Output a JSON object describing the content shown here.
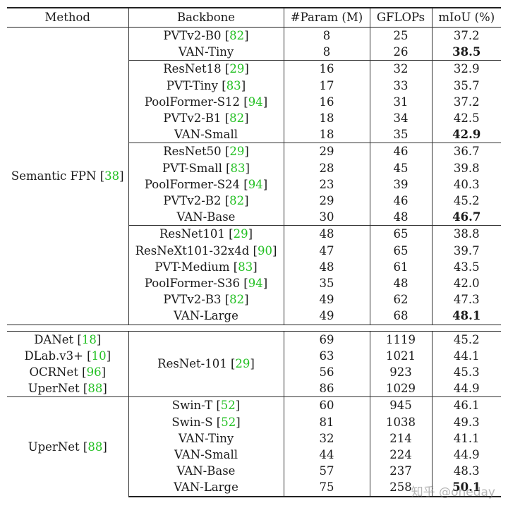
{
  "header": [
    "Method",
    "Backbone",
    "#Param (M)",
    "GFLOPs",
    "mIoU (%)"
  ],
  "semantic_fpn": {
    "method": "Semantic FPN",
    "method_ref": "38",
    "groups": [
      [
        {
          "backbone": "PVTv2-B0",
          "ref": "82",
          "param": "8",
          "gflops": "25",
          "miou": "37.2",
          "best": false
        },
        {
          "backbone": "VAN-Tiny",
          "ref": "",
          "param": "8",
          "gflops": "26",
          "miou": "38.5",
          "best": true
        }
      ],
      [
        {
          "backbone": "ResNet18",
          "ref": "29",
          "param": "16",
          "gflops": "32",
          "miou": "32.9",
          "best": false
        },
        {
          "backbone": "PVT-Tiny",
          "ref": "83",
          "param": "17",
          "gflops": "33",
          "miou": "35.7",
          "best": false
        },
        {
          "backbone": "PoolFormer-S12",
          "ref": "94",
          "param": "16",
          "gflops": "31",
          "miou": "37.2",
          "best": false
        },
        {
          "backbone": "PVTv2-B1",
          "ref": "82",
          "param": "18",
          "gflops": "34",
          "miou": "42.5",
          "best": false
        },
        {
          "backbone": "VAN-Small",
          "ref": "",
          "param": "18",
          "gflops": "35",
          "miou": "42.9",
          "best": true
        }
      ],
      [
        {
          "backbone": "ResNet50",
          "ref": "29",
          "param": "29",
          "gflops": "46",
          "miou": "36.7",
          "best": false
        },
        {
          "backbone": "PVT-Small",
          "ref": "83",
          "param": "28",
          "gflops": "45",
          "miou": "39.8",
          "best": false
        },
        {
          "backbone": "PoolFormer-S24",
          "ref": "94",
          "param": "23",
          "gflops": "39",
          "miou": "40.3",
          "best": false
        },
        {
          "backbone": "PVTv2-B2",
          "ref": "82",
          "param": "29",
          "gflops": "46",
          "miou": "45.2",
          "best": false
        },
        {
          "backbone": "VAN-Base",
          "ref": "",
          "param": "30",
          "gflops": "48",
          "miou": "46.7",
          "best": true
        }
      ],
      [
        {
          "backbone": "ResNet101",
          "ref": "29",
          "param": "48",
          "gflops": "65",
          "miou": "38.8",
          "best": false
        },
        {
          "backbone": "ResNeXt101-32x4d",
          "ref": "90",
          "param": "47",
          "gflops": "65",
          "miou": "39.7",
          "best": false
        },
        {
          "backbone": "PVT-Medium",
          "ref": "83",
          "param": "48",
          "gflops": "61",
          "miou": "43.5",
          "best": false
        },
        {
          "backbone": "PoolFormer-S36",
          "ref": "94",
          "param": "35",
          "gflops": "48",
          "miou": "42.0",
          "best": false
        },
        {
          "backbone": "PVTv2-B3",
          "ref": "82",
          "param": "49",
          "gflops": "62",
          "miou": "47.3",
          "best": false
        },
        {
          "backbone": "VAN-Large",
          "ref": "",
          "param": "49",
          "gflops": "68",
          "miou": "48.1",
          "best": true
        }
      ]
    ]
  },
  "resnet_section": {
    "backbone": "ResNet-101",
    "backbone_ref": "29",
    "rows": [
      {
        "method": "DANet",
        "ref": "18",
        "param": "69",
        "gflops": "1119",
        "miou": "45.2"
      },
      {
        "method": "DLab.v3+",
        "ref": "10",
        "param": "63",
        "gflops": "1021",
        "miou": "44.1"
      },
      {
        "method": "OCRNet",
        "ref": "96",
        "param": "56",
        "gflops": "923",
        "miou": "45.3"
      },
      {
        "method": "UperNet",
        "ref": "88",
        "param": "86",
        "gflops": "1029",
        "miou": "44.9"
      }
    ]
  },
  "upernet_section": {
    "method": "UperNet",
    "method_ref": "88",
    "rows": [
      {
        "backbone": "Swin-T",
        "ref": "52",
        "param": "60",
        "gflops": "945",
        "miou": "46.1",
        "best": false
      },
      {
        "backbone": "Swin-S",
        "ref": "52",
        "param": "81",
        "gflops": "1038",
        "miou": "49.3",
        "best": false
      },
      {
        "backbone": "VAN-Tiny",
        "ref": "",
        "param": "32",
        "gflops": "214",
        "miou": "41.1",
        "best": false
      },
      {
        "backbone": "VAN-Small",
        "ref": "",
        "param": "44",
        "gflops": "224",
        "miou": "44.9",
        "best": false
      },
      {
        "backbone": "VAN-Base",
        "ref": "",
        "param": "57",
        "gflops": "237",
        "miou": "48.3",
        "best": false
      },
      {
        "backbone": "VAN-Large",
        "ref": "",
        "param": "75",
        "gflops": "258",
        "miou": "50.1",
        "best": true
      }
    ]
  },
  "watermark": "知乎 @oneday"
}
